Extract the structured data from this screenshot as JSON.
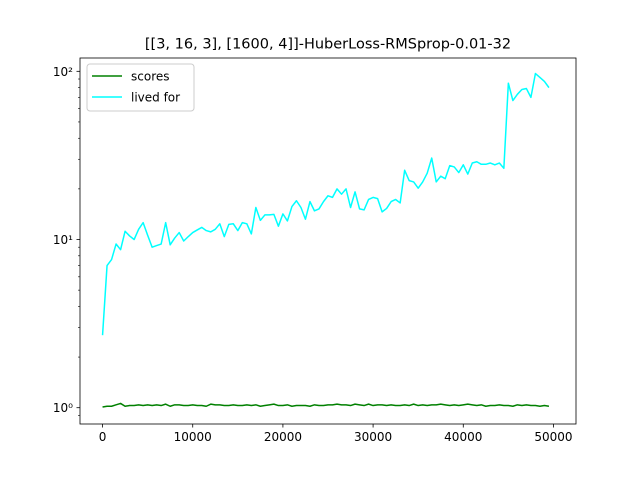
{
  "chart_data": {
    "type": "line",
    "title": "[[3, 16, 3], [1600, 4]]-HuberLoss-RMSprop-0.01-32",
    "xlabel": "",
    "ylabel": "",
    "yscale": "log",
    "xlim": [
      -2500,
      52500
    ],
    "ylim": [
      0.8,
      120
    ],
    "grid": false,
    "legend_position": "top-left",
    "x_ticks": [
      0,
      10000,
      20000,
      30000,
      40000,
      50000
    ],
    "x_tick_labels": [
      "0",
      "10000",
      "20000",
      "30000",
      "40000",
      "50000"
    ],
    "y_ticks": [
      1,
      10,
      100
    ],
    "y_tick_labels": [
      "10⁰",
      "10¹",
      "10²"
    ],
    "series": [
      {
        "name": "scores",
        "color": "#008000",
        "x": [
          0,
          500,
          1000,
          1500,
          2000,
          2500,
          3000,
          3500,
          4000,
          4500,
          5000,
          5500,
          6000,
          6500,
          7000,
          7500,
          8000,
          8500,
          9000,
          9500,
          10000,
          10500,
          11000,
          11500,
          12000,
          12500,
          13000,
          13500,
          14000,
          14500,
          15000,
          15500,
          16000,
          16500,
          17000,
          17500,
          18000,
          18500,
          19000,
          19500,
          20000,
          20500,
          21000,
          21500,
          22000,
          22500,
          23000,
          23500,
          24000,
          24500,
          25000,
          25500,
          26000,
          26500,
          27000,
          27500,
          28000,
          28500,
          29000,
          29500,
          30000,
          30500,
          31000,
          31500,
          32000,
          32500,
          33000,
          33500,
          34000,
          34500,
          35000,
          35500,
          36000,
          36500,
          37000,
          37500,
          38000,
          38500,
          39000,
          39500,
          40000,
          40500,
          41000,
          41500,
          42000,
          42500,
          43000,
          43500,
          44000,
          44500,
          45000,
          45500,
          46000,
          46500,
          47000,
          47500,
          48000,
          48500,
          49000,
          49500
        ],
        "values": [
          1.01,
          1.02,
          1.02,
          1.04,
          1.06,
          1.02,
          1.03,
          1.03,
          1.04,
          1.03,
          1.04,
          1.03,
          1.04,
          1.03,
          1.05,
          1.02,
          1.04,
          1.04,
          1.03,
          1.03,
          1.04,
          1.03,
          1.03,
          1.02,
          1.05,
          1.04,
          1.04,
          1.03,
          1.03,
          1.04,
          1.03,
          1.03,
          1.04,
          1.03,
          1.04,
          1.02,
          1.03,
          1.04,
          1.05,
          1.03,
          1.03,
          1.04,
          1.02,
          1.03,
          1.03,
          1.03,
          1.02,
          1.04,
          1.03,
          1.03,
          1.04,
          1.04,
          1.05,
          1.04,
          1.04,
          1.03,
          1.05,
          1.04,
          1.03,
          1.05,
          1.03,
          1.04,
          1.04,
          1.03,
          1.04,
          1.03,
          1.03,
          1.04,
          1.03,
          1.05,
          1.03,
          1.04,
          1.03,
          1.04,
          1.04,
          1.05,
          1.04,
          1.03,
          1.04,
          1.03,
          1.04,
          1.05,
          1.04,
          1.03,
          1.04,
          1.02,
          1.03,
          1.03,
          1.04,
          1.03,
          1.03,
          1.02,
          1.04,
          1.03,
          1.04,
          1.03,
          1.03,
          1.02,
          1.03,
          1.02
        ]
      },
      {
        "name": "lived for",
        "color": "#00ffff",
        "x": [
          0,
          500,
          1000,
          1500,
          2000,
          2500,
          3000,
          3500,
          4000,
          4500,
          5000,
          5500,
          6000,
          6500,
          7000,
          7500,
          8000,
          8500,
          9000,
          9500,
          10000,
          10500,
          11000,
          11500,
          12000,
          12500,
          13000,
          13500,
          14000,
          14500,
          15000,
          15500,
          16000,
          16500,
          17000,
          17500,
          18000,
          18500,
          19000,
          19500,
          20000,
          20500,
          21000,
          21500,
          22000,
          22500,
          23000,
          23500,
          24000,
          24500,
          25000,
          25500,
          26000,
          26500,
          27000,
          27500,
          28000,
          28500,
          29000,
          29500,
          30000,
          30500,
          31000,
          31500,
          32000,
          32500,
          33000,
          33500,
          34000,
          34500,
          35000,
          35500,
          36000,
          36500,
          37000,
          37500,
          38000,
          38500,
          39000,
          39500,
          40000,
          40500,
          41000,
          41500,
          42000,
          42500,
          43000,
          43500,
          44000,
          44500,
          45000,
          45500,
          46000,
          46500,
          47000,
          47500,
          48000,
          48500,
          49000,
          49500
        ],
        "values": [
          2.7,
          7.0,
          7.6,
          9.4,
          8.7,
          11.2,
          10.5,
          10.0,
          11.5,
          12.6,
          10.6,
          9.0,
          9.2,
          9.4,
          12.6,
          9.3,
          10.2,
          11.0,
          9.8,
          10.4,
          11.0,
          11.4,
          11.8,
          11.3,
          11.1,
          11.5,
          12.4,
          10.4,
          12.3,
          12.4,
          11.3,
          12.6,
          12.4,
          10.8,
          15.5,
          13.0,
          14.0,
          14.0,
          14.1,
          12.0,
          14.2,
          12.9,
          15.7,
          17.0,
          15.5,
          13.2,
          16.8,
          14.8,
          15.2,
          16.8,
          18.2,
          17.8,
          20.0,
          18.6,
          20.0,
          15.5,
          19.2,
          15.2,
          15.0,
          17.3,
          17.8,
          17.5,
          14.6,
          15.3,
          16.8,
          17.3,
          16.5,
          25.8,
          22.4,
          22.0,
          20.2,
          22.0,
          24.8,
          30.5,
          22.0,
          23.8,
          23.0,
          27.5,
          27.0,
          25.0,
          27.8,
          24.5,
          28.5,
          29.0,
          28.0,
          28.0,
          28.5,
          27.8,
          28.5,
          26.5,
          85.0,
          67.0,
          73.0,
          78.0,
          79.0,
          70.0,
          97.0,
          92.0,
          87.0,
          80.0
        ]
      }
    ]
  }
}
